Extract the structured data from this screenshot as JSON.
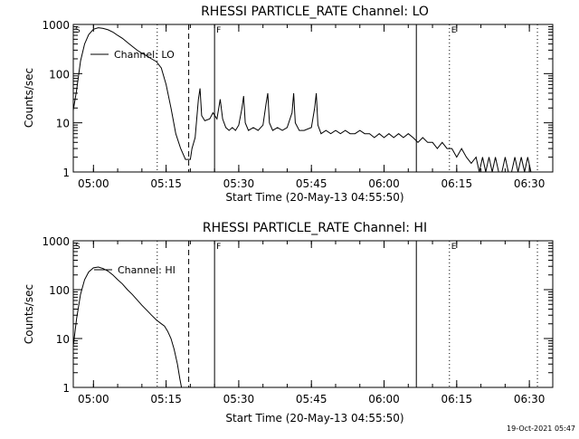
{
  "footer": {
    "timestamp": "19-Oct-2021 05:47"
  },
  "chart_data": [
    {
      "type": "line",
      "title": "RHESSI PARTICLE_RATE Channel: LO",
      "xlabel": "Start Time (20-May-13 04:55:50)",
      "ylabel": "Counts/sec",
      "yscale": "log",
      "ylim": [
        1,
        1000
      ],
      "xlim": [
        "04:55:50",
        "06:34:50"
      ],
      "grid": false,
      "legend": {
        "placement": "top-left",
        "label": "Channel: LO"
      },
      "x_ticks": [
        "05:00",
        "05:15",
        "05:30",
        "05:45",
        "06:00",
        "06:15",
        "06:30"
      ],
      "y_ticks": [
        "1",
        "10",
        "100",
        "1000"
      ],
      "event_markers": [
        {
          "label": "S",
          "time": "04:55:50",
          "style": "text"
        },
        {
          "label": "",
          "time": "05:13:10",
          "style": "dotted"
        },
        {
          "label": "",
          "time": "05:19:40",
          "style": "dashed"
        },
        {
          "label": "F",
          "time": "05:25:00",
          "style": "solid"
        },
        {
          "label": "",
          "time": "06:06:40",
          "style": "solid"
        },
        {
          "label": "E",
          "time": "06:13:30",
          "style": "dotted"
        },
        {
          "label": "",
          "time": "06:31:40",
          "style": "dotted"
        }
      ],
      "series": [
        {
          "name": "Channel: LO",
          "points": [
            [
              "04:55:50",
              18
            ],
            [
              "04:56:30",
              45
            ],
            [
              "04:57:20",
              180
            ],
            [
              "04:58:10",
              400
            ],
            [
              "04:59:00",
              620
            ],
            [
              "05:00:00",
              800
            ],
            [
              "05:01:00",
              860
            ],
            [
              "05:02:00",
              830
            ],
            [
              "05:03:00",
              780
            ],
            [
              "05:04:00",
              700
            ],
            [
              "05:05:00",
              600
            ],
            [
              "05:06:00",
              520
            ],
            [
              "05:07:00",
              430
            ],
            [
              "05:08:00",
              360
            ],
            [
              "05:09:00",
              300
            ],
            [
              "05:10:00",
              260
            ],
            [
              "05:11:00",
              230
            ],
            [
              "05:12:00",
              200
            ],
            [
              "05:13:00",
              175
            ],
            [
              "05:14:00",
              130
            ],
            [
              "05:15:00",
              60
            ],
            [
              "05:16:00",
              20
            ],
            [
              "05:17:00",
              6
            ],
            [
              "05:18:00",
              3
            ],
            [
              "05:19:00",
              1.8
            ],
            [
              "05:20:00",
              1.8
            ],
            [
              "05:20:20",
              3
            ],
            [
              "05:21:00",
              5
            ],
            [
              "05:21:40",
              30
            ],
            [
              "05:22:00",
              50
            ],
            [
              "05:22:20",
              14
            ],
            [
              "05:23:00",
              11
            ],
            [
              "05:24:00",
              12
            ],
            [
              "05:24:40",
              16
            ],
            [
              "05:25:30",
              12
            ],
            [
              "05:26:10",
              30
            ],
            [
              "05:26:40",
              12
            ],
            [
              "05:27:20",
              8
            ],
            [
              "05:28:00",
              7
            ],
            [
              "05:28:40",
              8
            ],
            [
              "05:29:20",
              7
            ],
            [
              "05:30:00",
              9
            ],
            [
              "05:30:40",
              20
            ],
            [
              "05:31:00",
              35
            ],
            [
              "05:31:20",
              10
            ],
            [
              "05:32:00",
              7
            ],
            [
              "05:33:00",
              8
            ],
            [
              "05:34:00",
              7
            ],
            [
              "05:35:00",
              9
            ],
            [
              "05:35:40",
              25
            ],
            [
              "05:36:00",
              40
            ],
            [
              "05:36:20",
              10
            ],
            [
              "05:37:00",
              7
            ],
            [
              "05:38:00",
              8
            ],
            [
              "05:39:00",
              7
            ],
            [
              "05:40:00",
              8
            ],
            [
              "05:41:00",
              16
            ],
            [
              "05:41:20",
              40
            ],
            [
              "05:41:40",
              10
            ],
            [
              "05:42:30",
              7
            ],
            [
              "05:43:30",
              7
            ],
            [
              "05:45:00",
              8
            ],
            [
              "05:45:40",
              20
            ],
            [
              "05:46:00",
              40
            ],
            [
              "05:46:20",
              9
            ],
            [
              "05:47:00",
              6
            ],
            [
              "05:48:00",
              7
            ],
            [
              "05:49:00",
              6
            ],
            [
              "05:50:00",
              7
            ],
            [
              "05:51:00",
              6
            ],
            [
              "05:52:00",
              7
            ],
            [
              "05:53:00",
              6
            ],
            [
              "05:54:00",
              6
            ],
            [
              "05:55:00",
              7
            ],
            [
              "05:56:00",
              6
            ],
            [
              "05:57:00",
              6
            ],
            [
              "05:58:00",
              5
            ],
            [
              "05:59:00",
              6
            ],
            [
              "06:00:00",
              5
            ],
            [
              "06:01:00",
              6
            ],
            [
              "06:02:00",
              5
            ],
            [
              "06:03:00",
              6
            ],
            [
              "06:04:00",
              5
            ],
            [
              "06:05:00",
              6
            ],
            [
              "06:06:00",
              5
            ],
            [
              "06:07:00",
              4
            ],
            [
              "06:08:00",
              5
            ],
            [
              "06:09:00",
              4
            ],
            [
              "06:10:00",
              4
            ],
            [
              "06:11:00",
              3
            ],
            [
              "06:12:00",
              4
            ],
            [
              "06:13:00",
              3
            ],
            [
              "06:14:00",
              3
            ],
            [
              "06:15:00",
              2
            ],
            [
              "06:16:00",
              3
            ],
            [
              "06:17:00",
              2
            ],
            [
              "06:18:00",
              1.5
            ],
            [
              "06:19:00",
              2
            ],
            [
              "06:19:40",
              1
            ],
            [
              "06:20:20",
              2
            ],
            [
              "06:21:00",
              1
            ],
            [
              "06:21:40",
              2
            ],
            [
              "06:22:20",
              1
            ],
            [
              "06:23:00",
              2
            ],
            [
              "06:23:40",
              1
            ],
            [
              "06:24:20",
              1
            ],
            [
              "06:25:00",
              2
            ],
            [
              "06:25:40",
              1
            ],
            [
              "06:26:20",
              1
            ],
            [
              "06:27:00",
              2
            ],
            [
              "06:27:40",
              1
            ],
            [
              "06:28:20",
              2
            ],
            [
              "06:29:00",
              1
            ],
            [
              "06:29:40",
              2
            ],
            [
              "06:30:20",
              1
            ]
          ]
        }
      ]
    },
    {
      "type": "line",
      "title": "RHESSI PARTICLE_RATE Channel: HI",
      "xlabel": "Start Time (20-May-13 04:55:50)",
      "ylabel": "Counts/sec",
      "yscale": "log",
      "ylim": [
        1,
        1000
      ],
      "xlim": [
        "04:55:50",
        "06:34:50"
      ],
      "grid": false,
      "legend": {
        "placement": "top-left",
        "label": "Channel: HI"
      },
      "x_ticks": [
        "05:00",
        "05:15",
        "05:30",
        "05:45",
        "06:00",
        "06:15",
        "06:30"
      ],
      "y_ticks": [
        "1",
        "10",
        "100",
        "1000"
      ],
      "event_markers": [
        {
          "label": "S",
          "time": "04:55:50",
          "style": "text"
        },
        {
          "label": "",
          "time": "05:13:10",
          "style": "dotted"
        },
        {
          "label": "",
          "time": "05:19:40",
          "style": "dashed"
        },
        {
          "label": "F",
          "time": "05:25:00",
          "style": "solid"
        },
        {
          "label": "",
          "time": "06:06:40",
          "style": "solid"
        },
        {
          "label": "E",
          "time": "06:13:30",
          "style": "dotted"
        },
        {
          "label": "",
          "time": "06:31:40",
          "style": "dotted"
        }
      ],
      "series": [
        {
          "name": "Channel: HI",
          "points": [
            [
              "04:55:50",
              7
            ],
            [
              "04:56:30",
              25
            ],
            [
              "04:57:20",
              80
            ],
            [
              "04:58:10",
              160
            ],
            [
              "04:59:00",
              230
            ],
            [
              "05:00:00",
              280
            ],
            [
              "05:01:00",
              290
            ],
            [
              "05:02:00",
              270
            ],
            [
              "05:03:00",
              240
            ],
            [
              "05:04:00",
              200
            ],
            [
              "05:05:00",
              160
            ],
            [
              "05:06:00",
              130
            ],
            [
              "05:07:00",
              100
            ],
            [
              "05:08:00",
              80
            ],
            [
              "05:09:00",
              62
            ],
            [
              "05:10:00",
              48
            ],
            [
              "05:11:00",
              38
            ],
            [
              "05:12:00",
              30
            ],
            [
              "05:13:00",
              24
            ],
            [
              "05:14:00",
              20
            ],
            [
              "05:14:40",
              18
            ],
            [
              "05:15:20",
              14
            ],
            [
              "05:16:00",
              10
            ],
            [
              "05:16:40",
              6
            ],
            [
              "05:17:20",
              3
            ],
            [
              "05:17:50",
              1.5
            ],
            [
              "05:18:10",
              1
            ]
          ]
        }
      ]
    }
  ]
}
